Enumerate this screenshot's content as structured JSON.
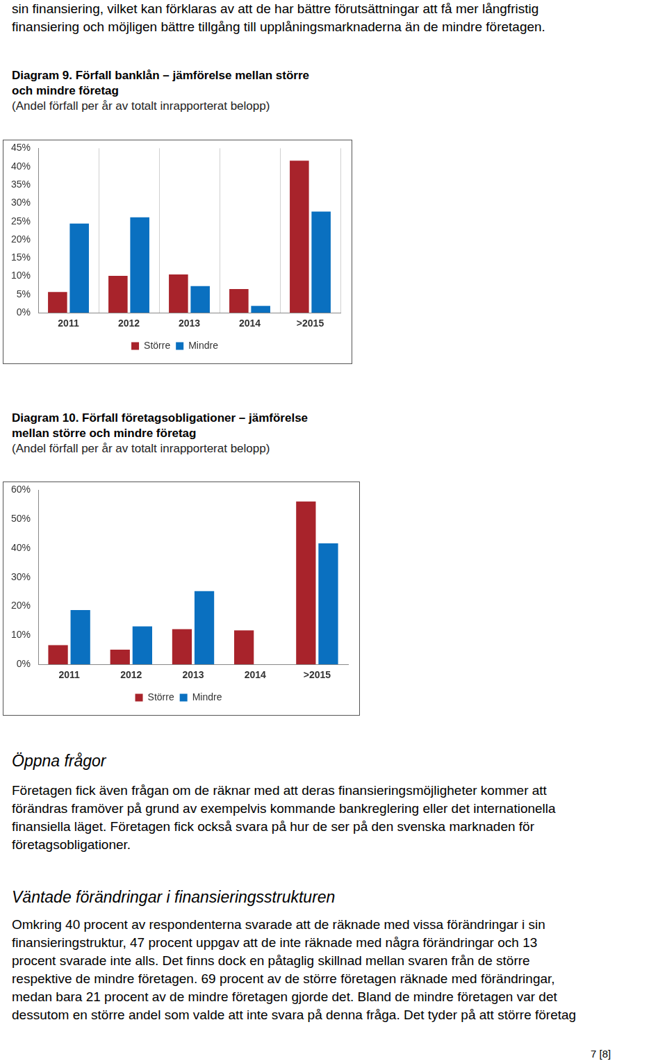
{
  "intro": [
    "sin finansiering, vilket kan förklaras av att de har bättre förutsättningar att få mer långfristig",
    "finansiering och möjligen bättre tillgång till upplåningsmarknaderna än de mindre företagen."
  ],
  "chart_data": [
    {
      "type": "bar",
      "title": [
        "Diagram 9. Förfall banklån – jämförelse mellan större",
        "och mindre företag"
      ],
      "subtitle": "(Andel förfall per år av totalt inrapporterat belopp)",
      "categories": [
        "2011",
        "2012",
        "2013",
        "2014",
        ">2015"
      ],
      "series": [
        {
          "name": "Större",
          "color": "#a8232b",
          "values": [
            5.7,
            10.1,
            10.5,
            6.5,
            41.6
          ]
        },
        {
          "name": "Mindre",
          "color": "#0a70c0",
          "values": [
            24.4,
            26.1,
            7.3,
            1.9,
            27.7
          ]
        }
      ],
      "ylim": [
        0,
        45
      ],
      "yticks": [
        {
          "value": 0,
          "label": "0%"
        },
        {
          "value": 5,
          "label": "5%"
        },
        {
          "value": 10,
          "label": "10%"
        },
        {
          "value": 15,
          "label": "15%"
        },
        {
          "value": 20,
          "label": "20%"
        },
        {
          "value": 25,
          "label": "25%"
        },
        {
          "value": 30,
          "label": "30%"
        },
        {
          "value": 35,
          "label": "35%"
        },
        {
          "value": 40,
          "label": "40%"
        },
        {
          "value": 45,
          "label": "45%"
        }
      ],
      "grid": "x",
      "legend": "bottom"
    },
    {
      "type": "bar",
      "title": [
        "Diagram 10. Förfall företagsobligationer – jämförelse",
        "mellan större och mindre företag"
      ],
      "subtitle": "(Andel förfall per år av totalt inrapporterat belopp)",
      "categories": [
        "2011",
        "2012",
        "2013",
        "2014",
        ">2015"
      ],
      "series": [
        {
          "name": "Större",
          "color": "#a8232b",
          "values": [
            6.6,
            5.1,
            12.1,
            11.7,
            56.1
          ]
        },
        {
          "name": "Mindre",
          "color": "#0a70c0",
          "values": [
            18.7,
            13.1,
            25.2,
            0,
            41.7
          ]
        }
      ],
      "ylim": [
        0,
        60
      ],
      "yticks": [
        {
          "value": 0,
          "label": "0%"
        },
        {
          "value": 10,
          "label": "10%"
        },
        {
          "value": 20,
          "label": "20%"
        },
        {
          "value": 30,
          "label": "30%"
        },
        {
          "value": 40,
          "label": "40%"
        },
        {
          "value": 50,
          "label": "50%"
        },
        {
          "value": 60,
          "label": "60%"
        }
      ],
      "grid": false,
      "legend": "bottom"
    }
  ],
  "sections": [
    {
      "heading": "Öppna frågor",
      "lines": [
        "Företagen fick även frågan om de räknar med att deras finansieringsmöjligheter kommer att",
        "förändras framöver på grund av exempelvis kommande bankreglering eller det internationella",
        "finansiella läget. Företagen fick också svara på hur de ser på den svenska marknaden för",
        "företagsobligationer."
      ]
    },
    {
      "heading": "Väntade förändringar i finansieringsstrukturen",
      "lines": [
        "Omkring 40 procent av respondenterna svarade att de räknade med vissa förändringar i sin",
        "finansieringstruktur, 47 procent uppgav att de inte räknade med några förändringar och 13",
        "procent svarade inte alls. Det finns dock en påtaglig skillnad mellan svaren från de större",
        "respektive de mindre företagen. 69 procent av de större företagen räknade med förändringar,",
        "medan bara 21 procent av de mindre företagen gjorde det. Bland de mindre företagen var det",
        "dessutom en större andel som valde att inte svara på denna fråga. Det tyder på att större företag"
      ]
    }
  ],
  "page_number": "7 [8]"
}
